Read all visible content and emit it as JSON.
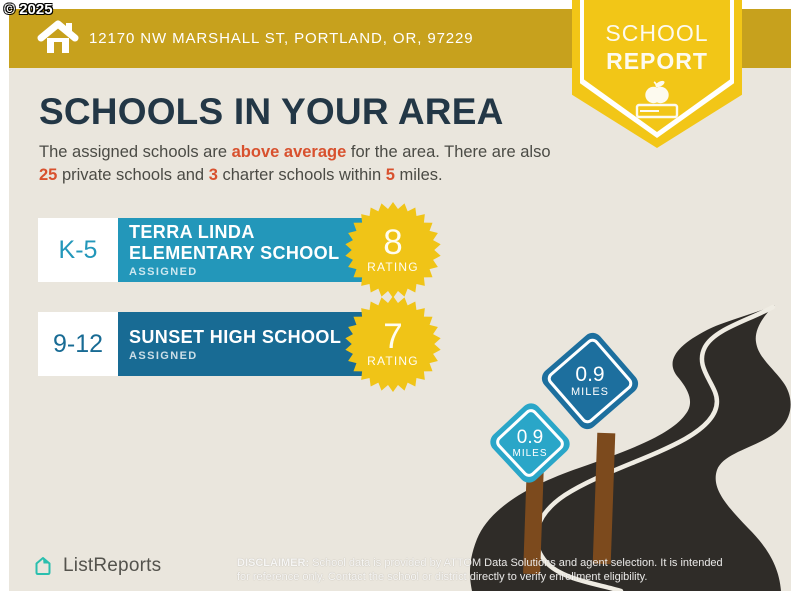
{
  "copyright": "© 2025",
  "banner": {
    "address": "12170 NW MARSHALL ST, PORTLAND, OR, 97229"
  },
  "badge": {
    "line1": "SCHOOL",
    "line2": "REPORT"
  },
  "heading": "SCHOOLS IN YOUR AREA",
  "intro": {
    "part1": "The assigned schools are ",
    "highlight1": "above average",
    "part2": " for the area. There are also ",
    "count_private": "25",
    "part3": " private schools and ",
    "count_charter": "3",
    "part4": " charter schools within ",
    "radius": "5",
    "part5": " miles."
  },
  "schools": [
    {
      "grades": "K-5",
      "name_line1": "TERRA LINDA",
      "name_line2": "ELEMENTARY SCHOOL",
      "status": "ASSIGNED",
      "rating": "8",
      "rating_label": "RATING",
      "distance": "0.9",
      "distance_unit": "MILES"
    },
    {
      "grades": "9-12",
      "name_line1": "SUNSET HIGH SCHOOL",
      "name_line2": "",
      "status": "ASSIGNED",
      "rating": "7",
      "rating_label": "RATING",
      "distance": "0.9",
      "distance_unit": "MILES"
    }
  ],
  "footer": {
    "brand": "ListReports",
    "disclaimer_label": "DISCLAIMER:",
    "disclaimer_rest1": " School data is provided by ATTOM Data Solutions and agent selection. It is intended",
    "disclaimer_rest2": "for reference only. Contact the school or district directly to verify enrollment eligibility."
  },
  "colors": {
    "banner_gold": "#c7a11d",
    "badge_yellow": "#f2c617",
    "starburst_yellow": "#f0c417",
    "heading_navy": "#233746",
    "accent_orange": "#d8512e",
    "elementary_teal": "#2397ba",
    "high_school_blue": "#186b94",
    "sign_left_teal": "#2aa6c8",
    "sign_right_blue": "#1d6f9e",
    "road_charcoal": "#2f2c28",
    "post_brown": "#7c4a1d",
    "logo_teal": "#2abfae",
    "background_beige": "#eae6dd"
  },
  "icons": {
    "home": "home-icon",
    "apple_book": "apple-on-book-icon",
    "logo_house": "listreports-house-icon"
  }
}
